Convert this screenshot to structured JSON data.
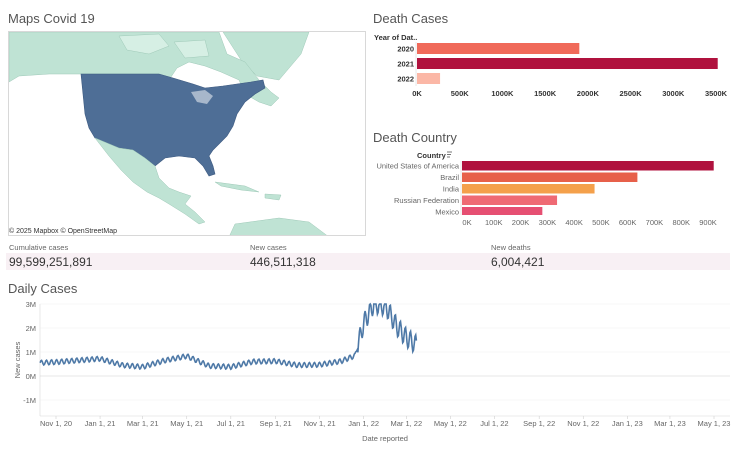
{
  "map_section": {
    "title": "Maps Covid 19",
    "attribution": "© 2025 Mapbox  © OpenStreetMap",
    "colors": {
      "ocean": "#ffffff",
      "land": "#bfe3d4",
      "highlight": "#4e6e96"
    }
  },
  "death_cases": {
    "title": "Death Cases",
    "axis_header": "Year of Dat..",
    "chart_data": {
      "type": "bar",
      "orientation": "horizontal",
      "categories": [
        "2020",
        "2021",
        "2022"
      ],
      "values": [
        1900000,
        3520000,
        270000
      ],
      "colors": [
        "#f06a5a",
        "#b0123e",
        "#fbb7a6"
      ],
      "xticks": [
        "0K",
        "500K",
        "1000K",
        "1500K",
        "2000K",
        "2500K",
        "3000K",
        "3500K"
      ],
      "xlim": [
        0,
        3500000
      ]
    }
  },
  "death_country": {
    "title": "Death Country",
    "axis_header": "Country",
    "sort_icon": "sort-descending-icon",
    "chart_data": {
      "type": "bar",
      "orientation": "horizontal",
      "categories": [
        "United States of America",
        "Brazil",
        "India",
        "Russian Federation",
        "Mexico"
      ],
      "values": [
        940000,
        655000,
        495000,
        355000,
        300000
      ],
      "colors": [
        "#b0123e",
        "#e7604a",
        "#f4a04b",
        "#ef6a74",
        "#e64f72"
      ],
      "xticks": [
        "0K",
        "100K",
        "200K",
        "300K",
        "400K",
        "500K",
        "600K",
        "700K",
        "800K",
        "900K"
      ],
      "xlim": [
        0,
        900000
      ]
    }
  },
  "kpis": [
    {
      "label": "Cumulative cases",
      "value": "99,599,251,891"
    },
    {
      "label": "New cases",
      "value": "446,511,318"
    },
    {
      "label": "New deaths",
      "value": "6,004,421"
    }
  ],
  "daily_cases": {
    "title": "Daily Cases",
    "chart_data": {
      "type": "line",
      "xlabel": "Date reported",
      "ylabel": "New cases",
      "xticks": [
        "Nov 1, 20",
        "Jan 1, 21",
        "Mar 1, 21",
        "May 1, 21",
        "Jul 1, 21",
        "Sep 1, 21",
        "Nov 1, 21",
        "Jan 1, 22",
        "Mar 1, 22",
        "May 1, 22",
        "Jul 1, 22",
        "Sep 1, 22",
        "Nov 1, 22",
        "Jan 1, 23",
        "Mar 1, 23",
        "May 1, 23"
      ],
      "yticks": [
        "3M",
        "2M",
        "1M",
        "0M",
        "-1M"
      ],
      "ylim": [
        -1000000,
        3000000
      ],
      "color": "#4e79a7",
      "x": [
        "2020-10-10",
        "2020-11-01",
        "2020-12-01",
        "2021-01-01",
        "2021-02-01",
        "2021-03-01",
        "2021-04-01",
        "2021-05-01",
        "2021-06-01",
        "2021-07-01",
        "2021-08-01",
        "2021-09-01",
        "2021-10-01",
        "2021-11-01",
        "2021-12-01",
        "2021-12-20",
        "2022-01-01",
        "2022-01-15",
        "2022-02-01",
        "2022-02-15",
        "2022-03-01",
        "2022-03-15"
      ],
      "values": [
        550000,
        580000,
        650000,
        720000,
        450000,
        380000,
        650000,
        830000,
        420000,
        380000,
        600000,
        620000,
        450000,
        470000,
        620000,
        850000,
        2200000,
        3000000,
        2900000,
        2100000,
        1600000,
        1300000
      ],
      "oscillation": 100000
    }
  }
}
